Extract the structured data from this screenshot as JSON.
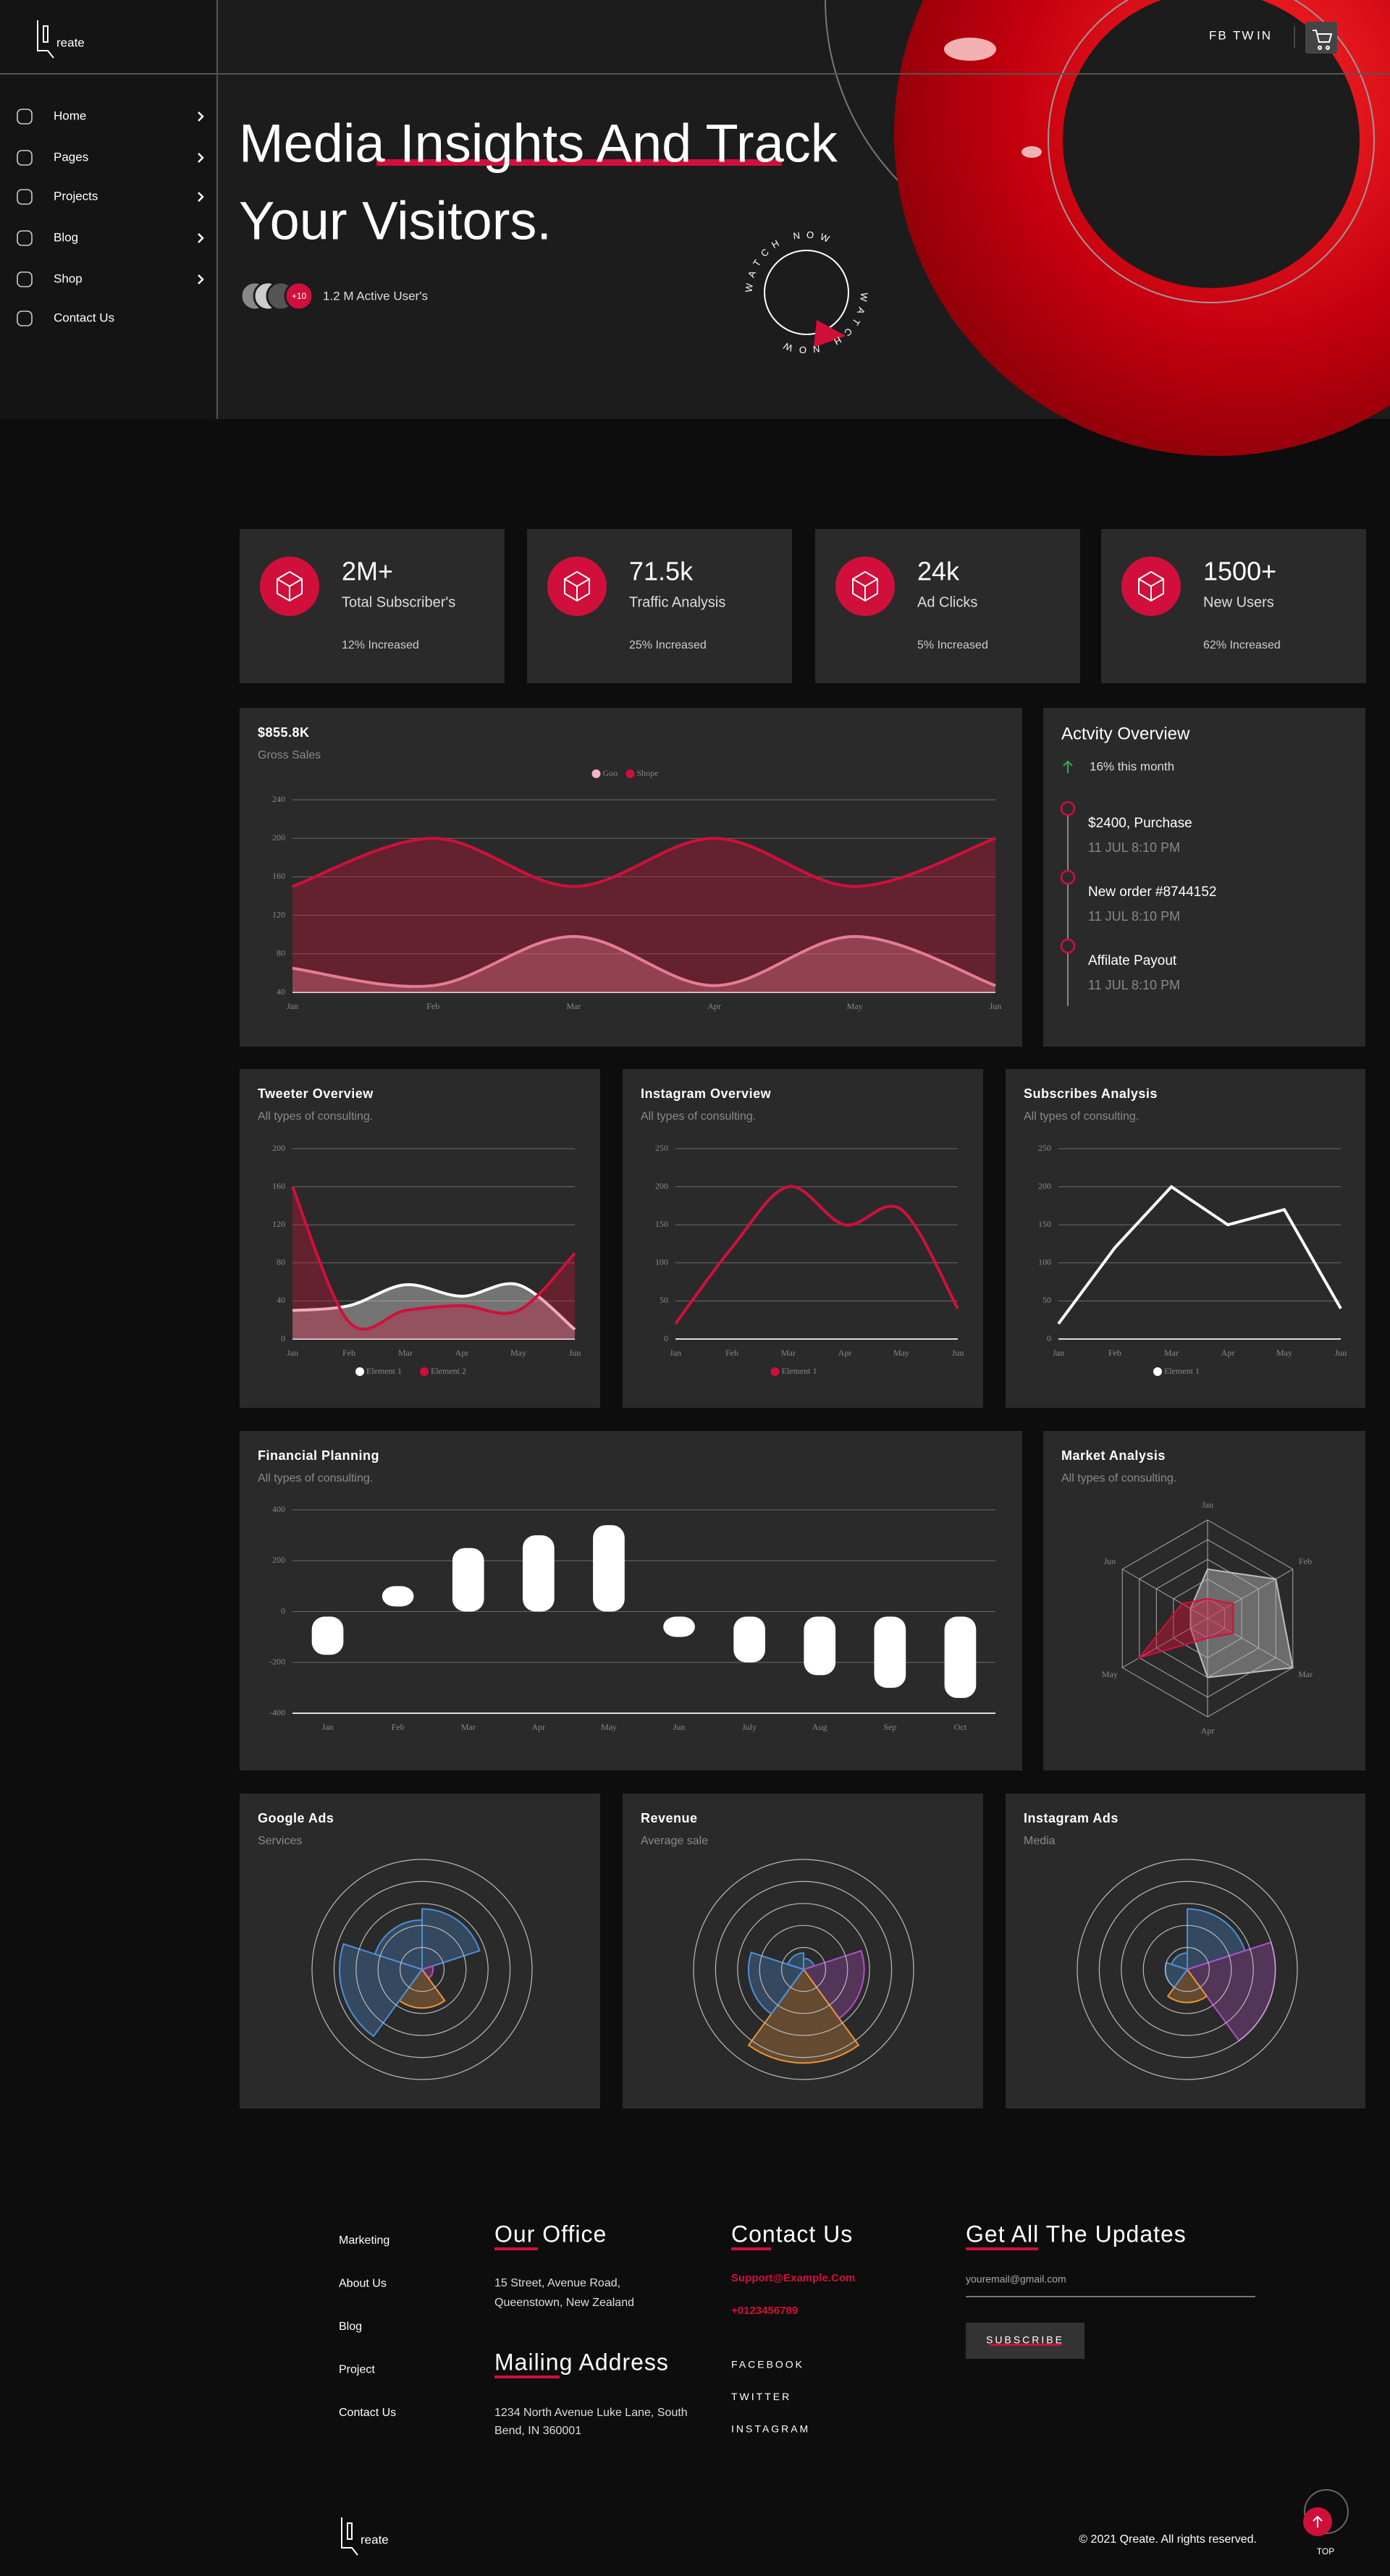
{
  "sidebar": {
    "logo": "reate",
    "menu": [
      "Home",
      "Pages",
      "Projects",
      "Blog",
      "Shop",
      "Contact Us"
    ]
  },
  "header": {
    "social": [
      "FB",
      "TW",
      "IN"
    ]
  },
  "hero": {
    "title": [
      "Media Insights And Track",
      "Your Visitors."
    ],
    "badge": "+10",
    "active_users": "1.2 M Active User's",
    "watch": "WATCH NOW"
  },
  "stats": [
    {
      "value": "2M+",
      "label": "Total Subscriber's",
      "change": "12% Increased"
    },
    {
      "value": "71.5k",
      "label": "Traffic Analysis",
      "change": "25% Increased"
    },
    {
      "value": "24k",
      "label": "Ad Clicks",
      "change": "5% Increased"
    },
    {
      "value": "1500+",
      "label": "New Users",
      "change": "62% Increased"
    }
  ],
  "activity": {
    "title": "Actvity Overview",
    "change": "16% this month",
    "items": [
      {
        "text": "$2400, Purchase",
        "time": "11 JUL 8:10 PM"
      },
      {
        "text": "New order #8744152",
        "time": "11 JUL 8:10 PM"
      },
      {
        "text": "Affilate Payout",
        "time": "11 JUL 8:10 PM"
      }
    ]
  },
  "chart_data": [
    {
      "type": "area",
      "title": "$855.8K",
      "subtitle": "Gross Sales",
      "legend": "top",
      "smooth": true,
      "categories": [
        "Jan",
        "Feb",
        "Mar",
        "Apr",
        "May",
        "Jun"
      ],
      "series": [
        {
          "name": "Goo",
          "color": "#f2b6c4",
          "values": [
            65,
            47,
            98,
            47,
            98,
            47
          ]
        },
        {
          "name": "Shope",
          "color": "#d0103a",
          "values": [
            150,
            200,
            150,
            200,
            150,
            200
          ]
        }
      ],
      "ylim": [
        40,
        240
      ],
      "yticks": [
        40,
        80,
        120,
        160,
        200,
        240
      ],
      "grid": true
    },
    {
      "type": "area",
      "title": "Tweeter Overview",
      "subtitle": "All types of consulting.",
      "legend": "bottom",
      "smooth": true,
      "categories": [
        "Jan",
        "Feb",
        "Mar",
        "Apr",
        "May",
        "Jun"
      ],
      "series": [
        {
          "name": "Element 1",
          "color": "#ffffff",
          "values": [
            30,
            35,
            57,
            45,
            57,
            10
          ]
        },
        {
          "name": "Element 2",
          "color": "#d0103a",
          "values": [
            160,
            18,
            30,
            35,
            30,
            90
          ]
        }
      ],
      "ylim": [
        0,
        200
      ],
      "yticks": [
        0,
        40,
        80,
        120,
        160,
        200
      ],
      "grid": true
    },
    {
      "type": "line",
      "title": "Instagram Overview",
      "subtitle": "All types of consulting.",
      "legend": "bottom",
      "smooth": true,
      "categories": [
        "Jan",
        "Feb",
        "Mar",
        "Apr",
        "May",
        "Jun"
      ],
      "series": [
        {
          "name": "Element 1",
          "color": "#d0103a",
          "values": [
            20,
            120,
            200,
            150,
            170,
            40
          ]
        }
      ],
      "ylim": [
        0,
        250
      ],
      "yticks": [
        0,
        50,
        100,
        150,
        200,
        250
      ],
      "grid": true
    },
    {
      "type": "line",
      "title": "Subscribes Analysis",
      "subtitle": "All types of consulting.",
      "legend": "bottom",
      "smooth": false,
      "categories": [
        "Jan",
        "Feb",
        "Mar",
        "Apr",
        "May",
        "Jun"
      ],
      "series": [
        {
          "name": "Element 1",
          "color": "#ffffff",
          "values": [
            20,
            120,
            200,
            150,
            170,
            40
          ]
        }
      ],
      "ylim": [
        0,
        250
      ],
      "yticks": [
        0,
        50,
        100,
        150,
        200,
        250
      ],
      "grid": true
    },
    {
      "type": "rangebar",
      "title": "Financial Planning",
      "subtitle": "All types of consulting.",
      "color": "#ffffff",
      "categories": [
        "Jan",
        "Feb",
        "Mar",
        "Apr",
        "May",
        "Jun",
        "July",
        "Aug",
        "Sep",
        "Oct"
      ],
      "values": [
        [
          -20,
          -170
        ],
        [
          20,
          100
        ],
        [
          0,
          250
        ],
        [
          0,
          300
        ],
        [
          0,
          340
        ],
        [
          -20,
          -100
        ],
        [
          -20,
          -200
        ],
        [
          -20,
          -250
        ],
        [
          -20,
          -300
        ],
        [
          -20,
          -340
        ]
      ],
      "ylim": [
        -400,
        400
      ],
      "yticks": [
        -400,
        -200,
        0,
        200,
        400
      ],
      "grid": true
    },
    {
      "type": "radar",
      "title": "Market Analysis",
      "subtitle": "All types of consulting.",
      "categories": [
        "Jan",
        "Feb",
        "Mar",
        "Apr",
        "May",
        "Jun"
      ],
      "rlim": [
        0,
        100
      ],
      "series": [
        {
          "color": "#bdbdbd",
          "values": [
            50,
            80,
            100,
            60,
            20,
            20
          ]
        },
        {
          "color": "#d0103a",
          "values": [
            20,
            30,
            30,
            20,
            80,
            30
          ]
        }
      ]
    },
    {
      "type": "polar",
      "title": "Google Ads",
      "subtitle": "Services",
      "rlim": [
        0,
        100
      ],
      "values": [
        55,
        10,
        35,
        75,
        45
      ],
      "colors": [
        "#4d8fd6",
        "#b04fc4",
        "#e8953a",
        "#4d8fd6",
        "#4d8fd6"
      ]
    },
    {
      "type": "polar",
      "title": "Revenue",
      "subtitle": "Average sale",
      "rlim": [
        0,
        100
      ],
      "values": [
        10,
        55,
        85,
        50,
        15
      ],
      "colors": [
        "#4d8fd6",
        "#b04fc4",
        "#e8953a",
        "#4d8fd6",
        "#4d8fd6"
      ]
    },
    {
      "type": "polar",
      "title": "Instagram Ads",
      "subtitle": "Media",
      "rlim": [
        0,
        100
      ],
      "values": [
        55,
        80,
        30,
        20,
        15
      ],
      "colors": [
        "#4d8fd6",
        "#b04fc4",
        "#e8953a",
        "#4d8fd6",
        "#4d8fd6"
      ]
    }
  ],
  "footer": {
    "links": [
      "Marketing",
      "About Us",
      "Blog",
      "Project",
      "Contact Us"
    ],
    "office": {
      "title": "Our Office",
      "lines": [
        "15 Street, Avenue Road,",
        "Queenstown, New Zealand"
      ]
    },
    "mailing": {
      "title": "Mailing Address",
      "lines": [
        "1234 North Avenue Luke Lane, South",
        "Bend, IN 360001"
      ]
    },
    "contact": {
      "title": "Contact Us",
      "email": "Support@Example.Com",
      "phone": "+0123456789",
      "social": [
        "FACEBOOK",
        "TWITTER",
        "INSTAGRAM"
      ]
    },
    "newsletter": {
      "title": "Get All The Updates",
      "placeholder": "youremail@gmail.com",
      "button": "SUBSCRIBE"
    },
    "logo": "reate",
    "copyright": "© 2021 Qreate. All rights reserved.",
    "top": "TOP"
  }
}
